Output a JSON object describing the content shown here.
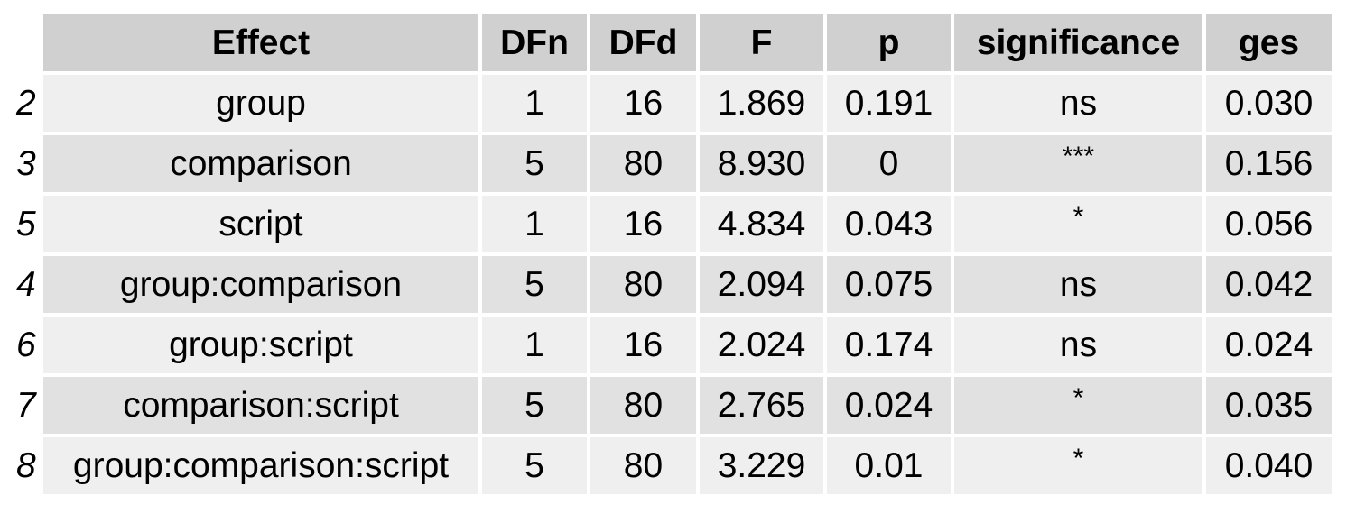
{
  "chart_data": {
    "type": "table",
    "columns": [
      "Effect",
      "DFn",
      "DFd",
      "F",
      "p",
      "significance",
      "ges"
    ],
    "rows": [
      {
        "rowname": "2",
        "cells": [
          "group",
          "1",
          "16",
          "1.869",
          "0.191",
          "ns",
          "0.030"
        ]
      },
      {
        "rowname": "3",
        "cells": [
          "comparison",
          "5",
          "80",
          "8.930",
          "0",
          "***",
          "0.156"
        ]
      },
      {
        "rowname": "5",
        "cells": [
          "script",
          "1",
          "16",
          "4.834",
          "0.043",
          "*",
          "0.056"
        ]
      },
      {
        "rowname": "4",
        "cells": [
          "group:comparison",
          "5",
          "80",
          "2.094",
          "0.075",
          "ns",
          "0.042"
        ]
      },
      {
        "rowname": "6",
        "cells": [
          "group:script",
          "1",
          "16",
          "2.024",
          "0.174",
          "ns",
          "0.024"
        ]
      },
      {
        "rowname": "7",
        "cells": [
          "comparison:script",
          "5",
          "80",
          "2.765",
          "0.024",
          "*",
          "0.035"
        ]
      },
      {
        "rowname": "8",
        "cells": [
          "group:comparison:script",
          "5",
          "80",
          "3.229",
          "0.01",
          "*",
          "0.040"
        ]
      }
    ],
    "colors": {
      "header_fill": "#d0d0d0",
      "row_fill_odd": "#efefef",
      "row_fill_even": "#e1e1e1"
    }
  }
}
